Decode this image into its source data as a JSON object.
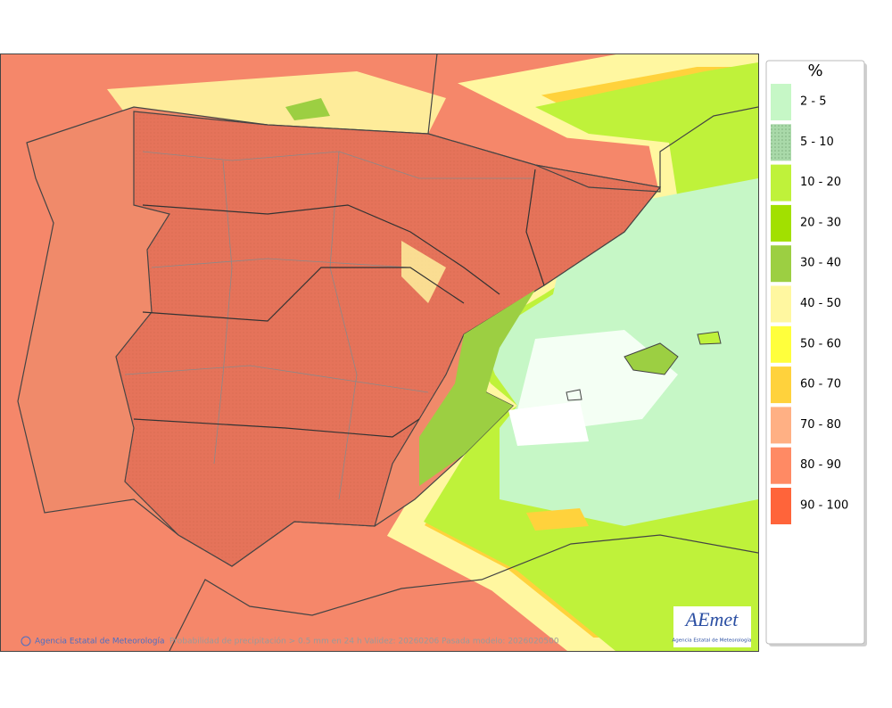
{
  "legend": {
    "title": "%",
    "items": [
      {
        "label": "2 - 5",
        "color": "#c6f7c6"
      },
      {
        "label": "5 - 10",
        "color": "#a9d9a9"
      },
      {
        "label": "10 - 20",
        "color": "#bff23a"
      },
      {
        "label": "20 - 30",
        "color": "#a2e000"
      },
      {
        "label": "30 - 40",
        "color": "#9ccf42"
      },
      {
        "label": "40 - 50",
        "color": "#fff7a0"
      },
      {
        "label": "50 - 60",
        "color": "#ffff3c"
      },
      {
        "label": "60 - 70",
        "color": "#ffd23c"
      },
      {
        "label": "70 - 80",
        "color": "#ffb084"
      },
      {
        "label": "80 - 90",
        "color": "#ff8a64"
      },
      {
        "label": "90 - 100",
        "color": "#ff643a"
      }
    ]
  },
  "footer": {
    "agency": "Agencia Estatal de Meteorología",
    "caption": "Probabilidad de precipitación > 0.5 mm en 24 h Validez: 20260206 Pasada modelo: 2026020500"
  },
  "logo": {
    "name": "AEmet",
    "subtitle": "Agencia Estatal de Meteorología"
  }
}
